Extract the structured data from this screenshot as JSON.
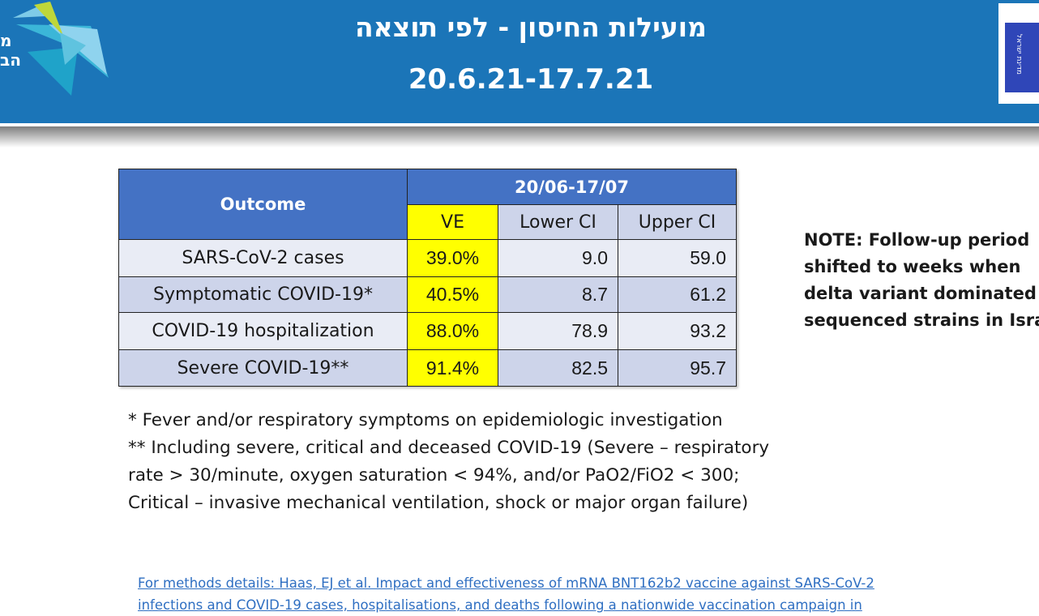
{
  "header": {
    "title_line1": "מועילות החיסון - לפי תוצאה",
    "title_line2": "20.6.21-17.7.21",
    "logo_left_text": "מ\nהב",
    "logo_right_text": "מדינת ישראל"
  },
  "table": {
    "outcome_header": "Outcome",
    "period_header": "20/06-17/07",
    "columns": [
      "VE",
      "Lower CI",
      "Upper CI"
    ],
    "rows": [
      {
        "outcome": "SARS-CoV-2 cases",
        "ve": "39.0%",
        "lower": "9.0",
        "upper": "59.0"
      },
      {
        "outcome": "Symptomatic COVID-19*",
        "ve": "40.5%",
        "lower": "8.7",
        "upper": "61.2"
      },
      {
        "outcome": "COVID-19 hospitalization",
        "ve": "88.0%",
        "lower": "78.9",
        "upper": "93.2"
      },
      {
        "outcome": "Severe COVID-19**",
        "ve": "91.4%",
        "lower": "82.5",
        "upper": "95.7"
      }
    ]
  },
  "note": {
    "lines": [
      "NOTE: Follow-up period",
      "shifted to weeks when",
      "delta variant dominated",
      "sequenced strains in Israel"
    ]
  },
  "footnotes": {
    "lines": [
      "* Fever and/or respiratory symptoms on epidemiologic investigation",
      "** Including severe, critical and deceased COVID-19 (Severe – respiratory",
      "rate > 30/minute, oxygen saturation < 94%, and/or PaO2/FiO2 < 300;",
      "Critical – invasive mechanical ventilation, shock or major organ failure)"
    ]
  },
  "link": {
    "lines": [
      "For methods details: Haas, EJ et al. Impact and effectiveness of mRNA BNT162b2 vaccine against SARS-CoV-2",
      "infections and COVID-19 cases, hospitalisations, and deaths following a nationwide vaccination campaign in"
    ]
  },
  "colors": {
    "header_blue": "#1b75b8",
    "table_header_blue": "#4472c4",
    "ve_yellow": "#ffff00",
    "row_light": "#e9ecf5",
    "row_dark": "#cdd4ea",
    "link_blue": "#2f6fc2"
  }
}
